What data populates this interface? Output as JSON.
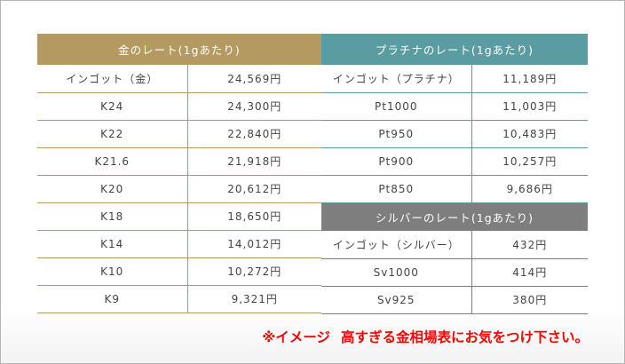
{
  "gold": {
    "title": "金のレート(1gあたり)",
    "rows": [
      [
        "インゴット（金）",
        "24,569円"
      ],
      [
        "K24",
        "24,300円"
      ],
      [
        "K22",
        "22,840円"
      ],
      [
        "K21.6",
        "21,918円"
      ],
      [
        "K20",
        "20,612円"
      ],
      [
        "K18",
        "18,650円"
      ],
      [
        "K14",
        "14,012円"
      ],
      [
        "K10",
        "10,272円"
      ],
      [
        "K9",
        "9,321円"
      ]
    ]
  },
  "platinum": {
    "title": "プラチナのレート(1gあたり)",
    "rows": [
      [
        "インゴット（プラチナ）",
        "11,189円"
      ],
      [
        "Pt1000",
        "11,003円"
      ],
      [
        "Pt950",
        "10,483円"
      ],
      [
        "Pt900",
        "10,257円"
      ],
      [
        "Pt850",
        "9,686円"
      ]
    ]
  },
  "silver": {
    "title": "シルバーのレート(1gあたり)",
    "rows": [
      [
        "インゴット（シルバー）",
        "432円"
      ],
      [
        "Sv1000",
        "414円"
      ],
      [
        "Sv925",
        "380円"
      ]
    ]
  },
  "note": {
    "prefix": "※イメージ",
    "text": "高すぎる金相場表にお気をつけ下さい。"
  },
  "colors": {
    "gold": "#b49a61",
    "platinum": "#5a9ca2",
    "silver": "#7e7e7e",
    "note": "#ff0000"
  }
}
